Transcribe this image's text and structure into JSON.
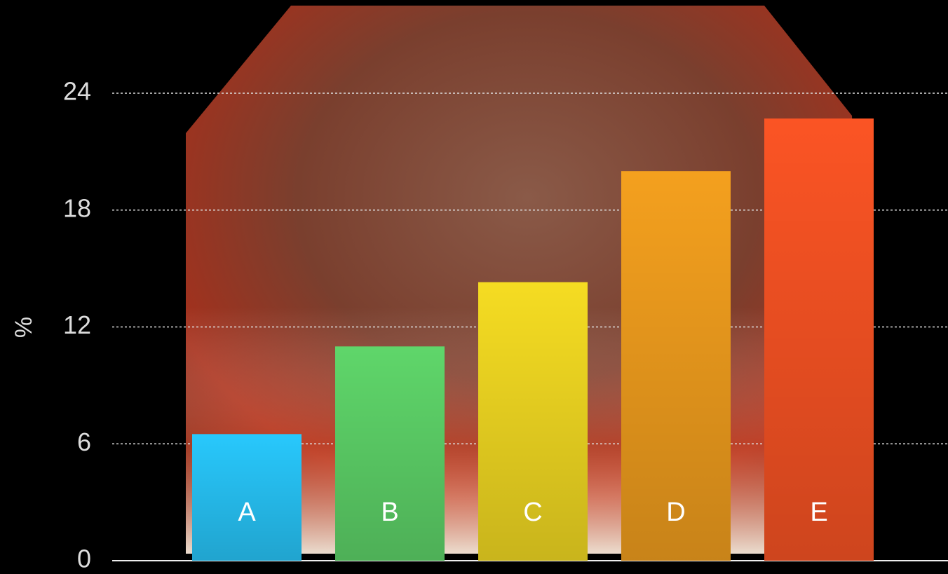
{
  "chart_data": {
    "type": "bar",
    "y_label": "%",
    "categories": [
      "A",
      "B",
      "C",
      "D",
      "E"
    ],
    "values": [
      6.5,
      11,
      14.3,
      20,
      22.7
    ],
    "colors": [
      "#28c8fc",
      "#5fd66a",
      "#f5dc22",
      "#f4a01e",
      "#fb5424"
    ],
    "ylim": [
      0,
      24
    ],
    "yticks": [
      0,
      6,
      12,
      18,
      24
    ],
    "grid": true
  }
}
